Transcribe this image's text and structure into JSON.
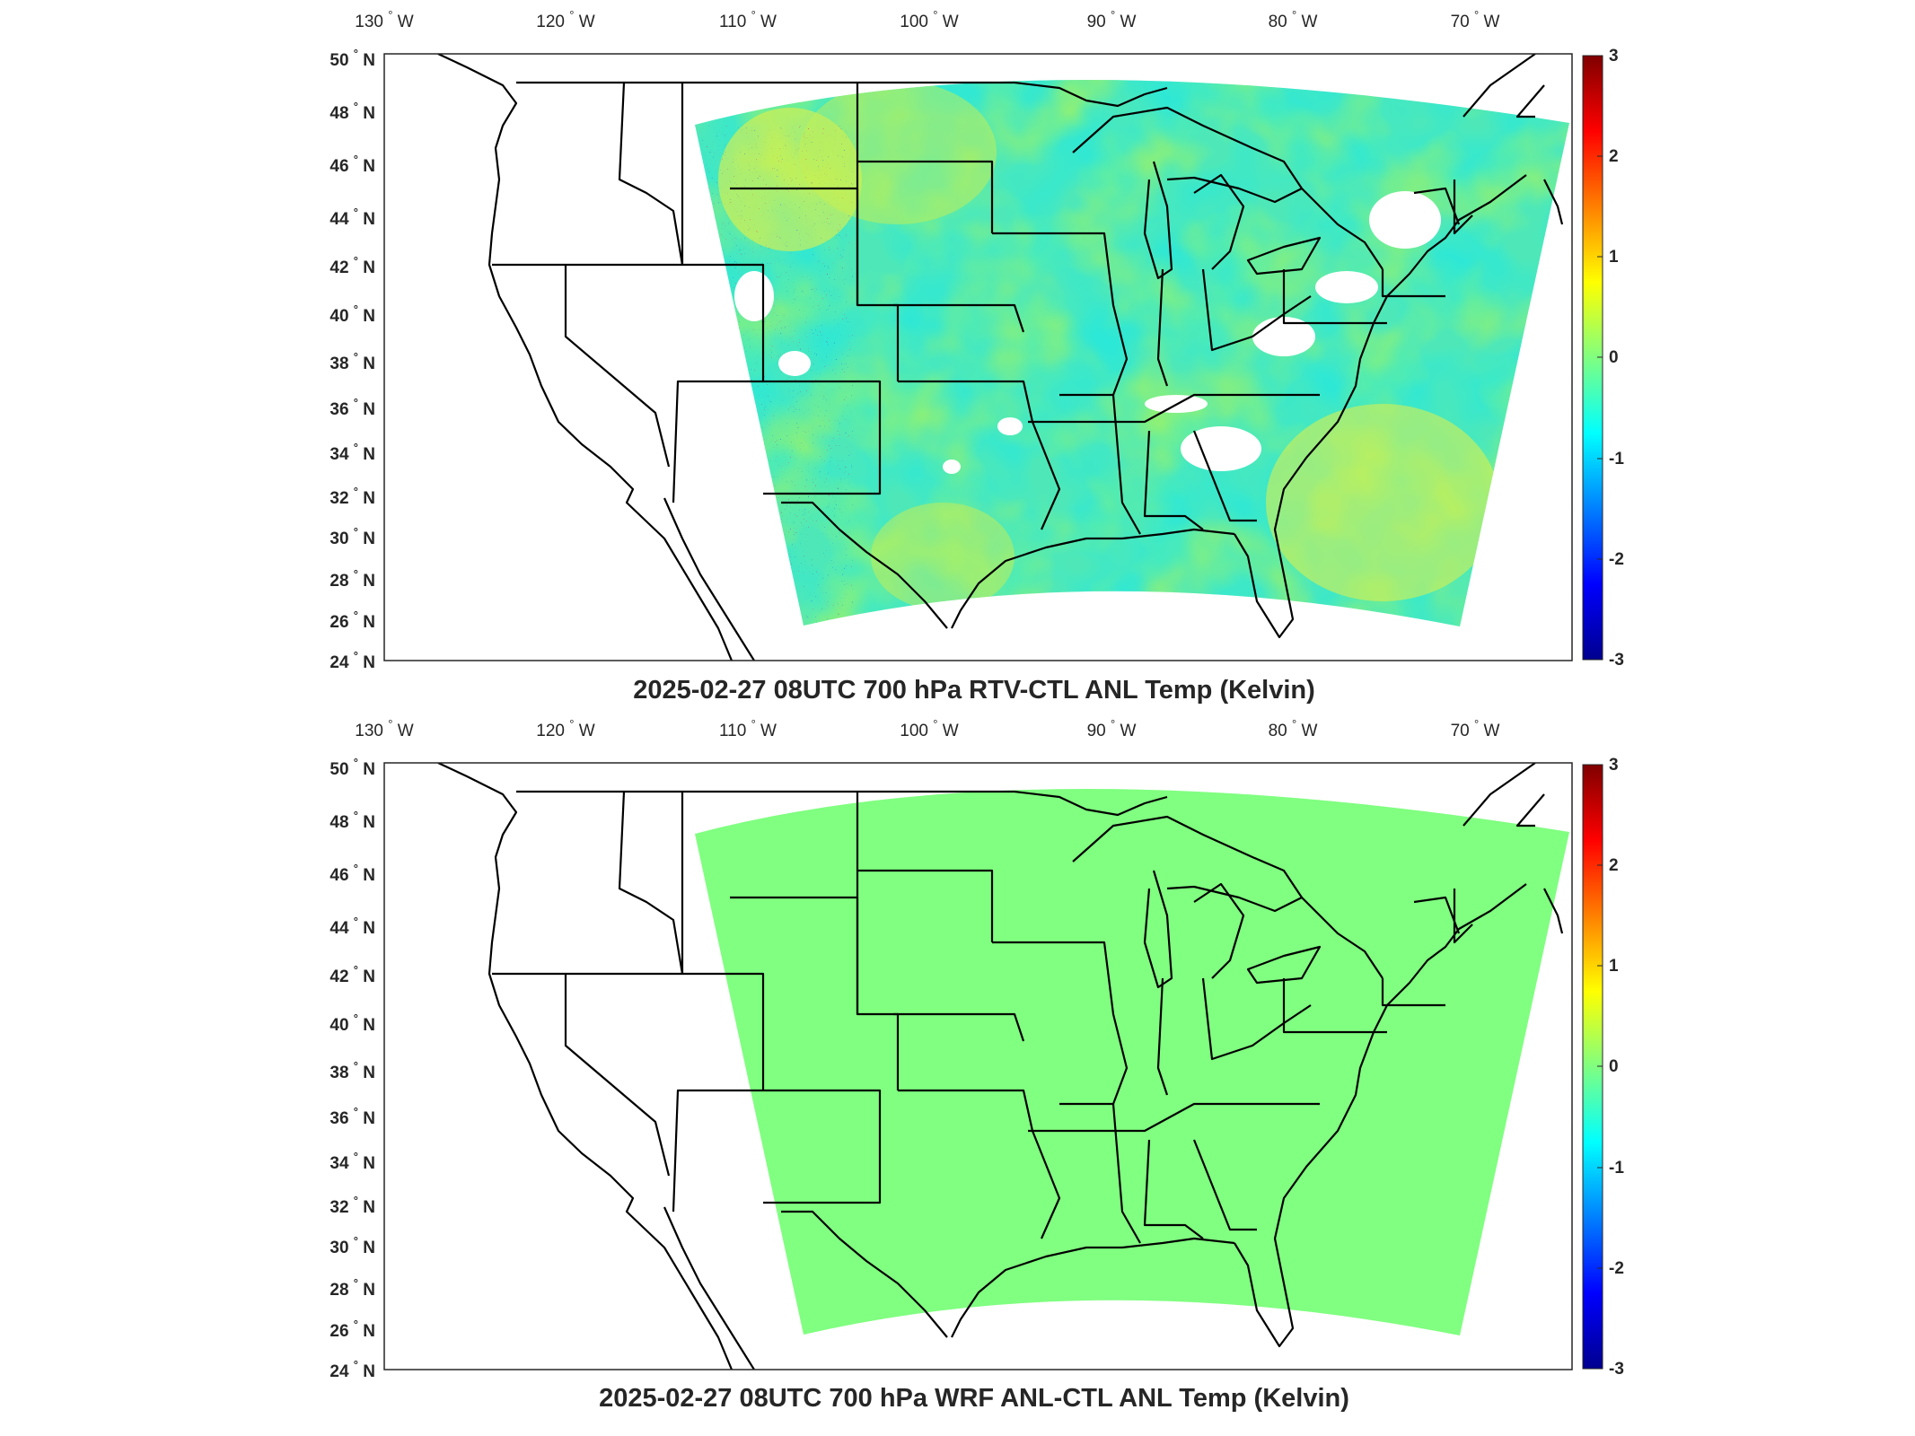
{
  "maps": [
    {
      "title": "2025-02-27 08UTC 700 hPa RTV-CTL ANL Temp (Kelvin)",
      "field": "difference-noisy",
      "longitude_labels": [
        {
          "deg": "130",
          "hem": "W"
        },
        {
          "deg": "120",
          "hem": "W"
        },
        {
          "deg": "110",
          "hem": "W"
        },
        {
          "deg": "100",
          "hem": "W"
        },
        {
          "deg": "90",
          "hem": "W"
        },
        {
          "deg": "80",
          "hem": "W"
        },
        {
          "deg": "70",
          "hem": "W"
        }
      ],
      "latitude_labels": [
        {
          "deg": "50",
          "hem": "N"
        },
        {
          "deg": "48",
          "hem": "N"
        },
        {
          "deg": "46",
          "hem": "N"
        },
        {
          "deg": "44",
          "hem": "N"
        },
        {
          "deg": "42",
          "hem": "N"
        },
        {
          "deg": "40",
          "hem": "N"
        },
        {
          "deg": "38",
          "hem": "N"
        },
        {
          "deg": "36",
          "hem": "N"
        },
        {
          "deg": "34",
          "hem": "N"
        },
        {
          "deg": "32",
          "hem": "N"
        },
        {
          "deg": "30",
          "hem": "N"
        },
        {
          "deg": "28",
          "hem": "N"
        },
        {
          "deg": "26",
          "hem": "N"
        },
        {
          "deg": "24",
          "hem": "N"
        }
      ],
      "colorbar": {
        "ticks": [
          "3",
          "2",
          "1",
          "0",
          "-1",
          "-2",
          "-3"
        ],
        "min": -3,
        "max": 3
      }
    },
    {
      "title": "2025-02-27 08UTC 700 hPa WRF ANL-CTL ANL Temp (Kelvin)",
      "field": "uniform-zero",
      "fill_color": "#80ff80",
      "longitude_labels": [
        {
          "deg": "130",
          "hem": "W"
        },
        {
          "deg": "120",
          "hem": "W"
        },
        {
          "deg": "110",
          "hem": "W"
        },
        {
          "deg": "100",
          "hem": "W"
        },
        {
          "deg": "90",
          "hem": "W"
        },
        {
          "deg": "80",
          "hem": "W"
        },
        {
          "deg": "70",
          "hem": "W"
        }
      ],
      "latitude_labels": [
        {
          "deg": "50",
          "hem": "N"
        },
        {
          "deg": "48",
          "hem": "N"
        },
        {
          "deg": "46",
          "hem": "N"
        },
        {
          "deg": "44",
          "hem": "N"
        },
        {
          "deg": "42",
          "hem": "N"
        },
        {
          "deg": "40",
          "hem": "N"
        },
        {
          "deg": "38",
          "hem": "N"
        },
        {
          "deg": "36",
          "hem": "N"
        },
        {
          "deg": "34",
          "hem": "N"
        },
        {
          "deg": "32",
          "hem": "N"
        },
        {
          "deg": "30",
          "hem": "N"
        },
        {
          "deg": "28",
          "hem": "N"
        },
        {
          "deg": "26",
          "hem": "N"
        },
        {
          "deg": "24",
          "hem": "N"
        }
      ],
      "colorbar": {
        "ticks": [
          "3",
          "2",
          "1",
          "0",
          "-1",
          "-2",
          "-3"
        ],
        "min": -3,
        "max": 3
      }
    }
  ],
  "colormap": [
    "#00008f",
    "#0000ff",
    "#0080ff",
    "#00ffff",
    "#80ff80",
    "#ffff00",
    "#ff8000",
    "#ff0000",
    "#800000"
  ]
}
